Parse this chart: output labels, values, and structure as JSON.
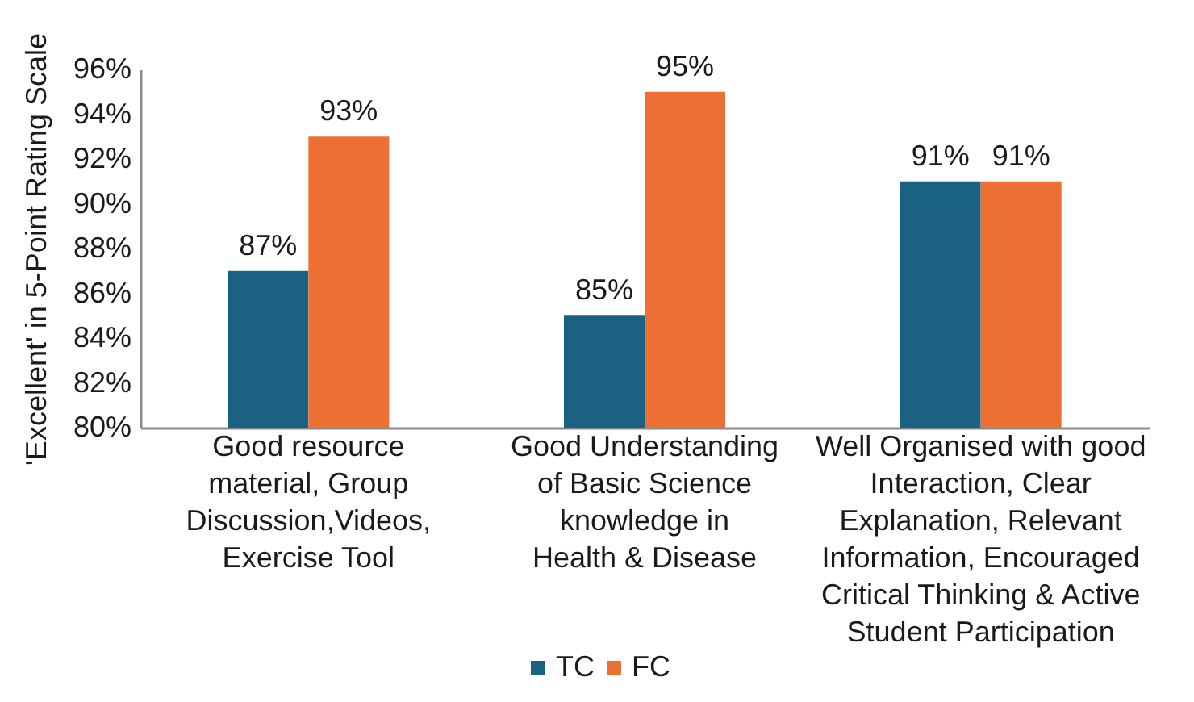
{
  "chart_data": {
    "type": "bar",
    "categories": [
      "Good  resource\nmaterial, Group\nDiscussion,Videos,\nExercise Tool",
      "Good Understanding\nof Basic Science\nknowledge in\nHealth & Disease",
      "Well Organised with good\nInteraction, Clear\nExplanation, Relevant\nInformation, Encouraged\nCritical Thinking & Active\nStudent Participation"
    ],
    "ylabel": "'Excellent' in 5-Point Rating Scale",
    "ylim": [
      80,
      96
    ],
    "yticks": [
      {
        "value": 80,
        "label": "80%"
      },
      {
        "value": 82,
        "label": "82%"
      },
      {
        "value": 84,
        "label": "84%"
      },
      {
        "value": 86,
        "label": "86%"
      },
      {
        "value": 88,
        "label": "88%"
      },
      {
        "value": 90,
        "label": "90%"
      },
      {
        "value": 92,
        "label": "92%"
      },
      {
        "value": 94,
        "label": "94%"
      },
      {
        "value": 96,
        "label": "96%"
      }
    ],
    "series": [
      {
        "name": "TC",
        "color": "#1b6183",
        "values": [
          87,
          85,
          91
        ],
        "value_labels": [
          "87%",
          "85%",
          "91%"
        ]
      },
      {
        "name": "FC",
        "color": "#ec7034",
        "values": [
          93,
          95,
          91
        ],
        "value_labels": [
          "93%",
          "95%",
          "91%"
        ]
      }
    ],
    "legend": "bottom",
    "grid": false
  }
}
